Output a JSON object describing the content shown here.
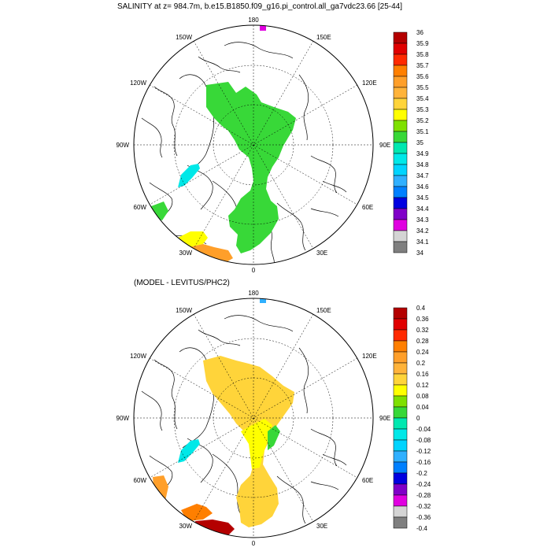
{
  "title": "SALINITY at z= 984.7m, b.e15.B1850.f09_g16.pi_control.all_ga7vdc23.66 [25-44]",
  "lower_title": "(MODEL - LEVITUS/PHC2)",
  "longitude_labels": [
    "180",
    "150E",
    "120E",
    "90E",
    "60E",
    "30E",
    "0",
    "30W",
    "60W",
    "90W",
    "120W",
    "150W"
  ],
  "upper_colorbar": {
    "labels": [
      "36",
      "35.9",
      "35.8",
      "35.7",
      "35.6",
      "35.5",
      "35.4",
      "35.3",
      "35.2",
      "35.1",
      "35",
      "34.9",
      "34.8",
      "34.7",
      "34.6",
      "34.5",
      "34.4",
      "34.3",
      "34.2",
      "34.1",
      "34"
    ],
    "colors": [
      "#b40000",
      "#e00000",
      "#ff2a00",
      "#ff7f00",
      "#ff9f2a",
      "#ffb33a",
      "#ffd43a",
      "#ffff00",
      "#7fe000",
      "#38d838",
      "#00e8b0",
      "#00e8e8",
      "#00d4ff",
      "#30b0ff",
      "#0080ff",
      "#0000e0",
      "#8000c8",
      "#e000e0",
      "#d4d4d4",
      "#7f7f7f"
    ]
  },
  "lower_colorbar": {
    "labels": [
      "0.4",
      "0.36",
      "0.32",
      "0.28",
      "0.24",
      "0.2",
      "0.16",
      "0.12",
      "0.08",
      "0.04",
      "0",
      "-0.04",
      "-0.08",
      "-0.12",
      "-0.16",
      "-0.2",
      "-0.24",
      "-0.28",
      "-0.32",
      "-0.36",
      "-0.4"
    ],
    "colors": [
      "#b40000",
      "#e00000",
      "#ff2a00",
      "#ff7f00",
      "#ff9f2a",
      "#ffb33a",
      "#ffd43a",
      "#ffff00",
      "#7fe000",
      "#38d838",
      "#00e8b0",
      "#00e8e8",
      "#00d4ff",
      "#30b0ff",
      "#0080ff",
      "#0000e0",
      "#8000c8",
      "#e000e0",
      "#d4d4d4",
      "#7f7f7f"
    ]
  }
}
